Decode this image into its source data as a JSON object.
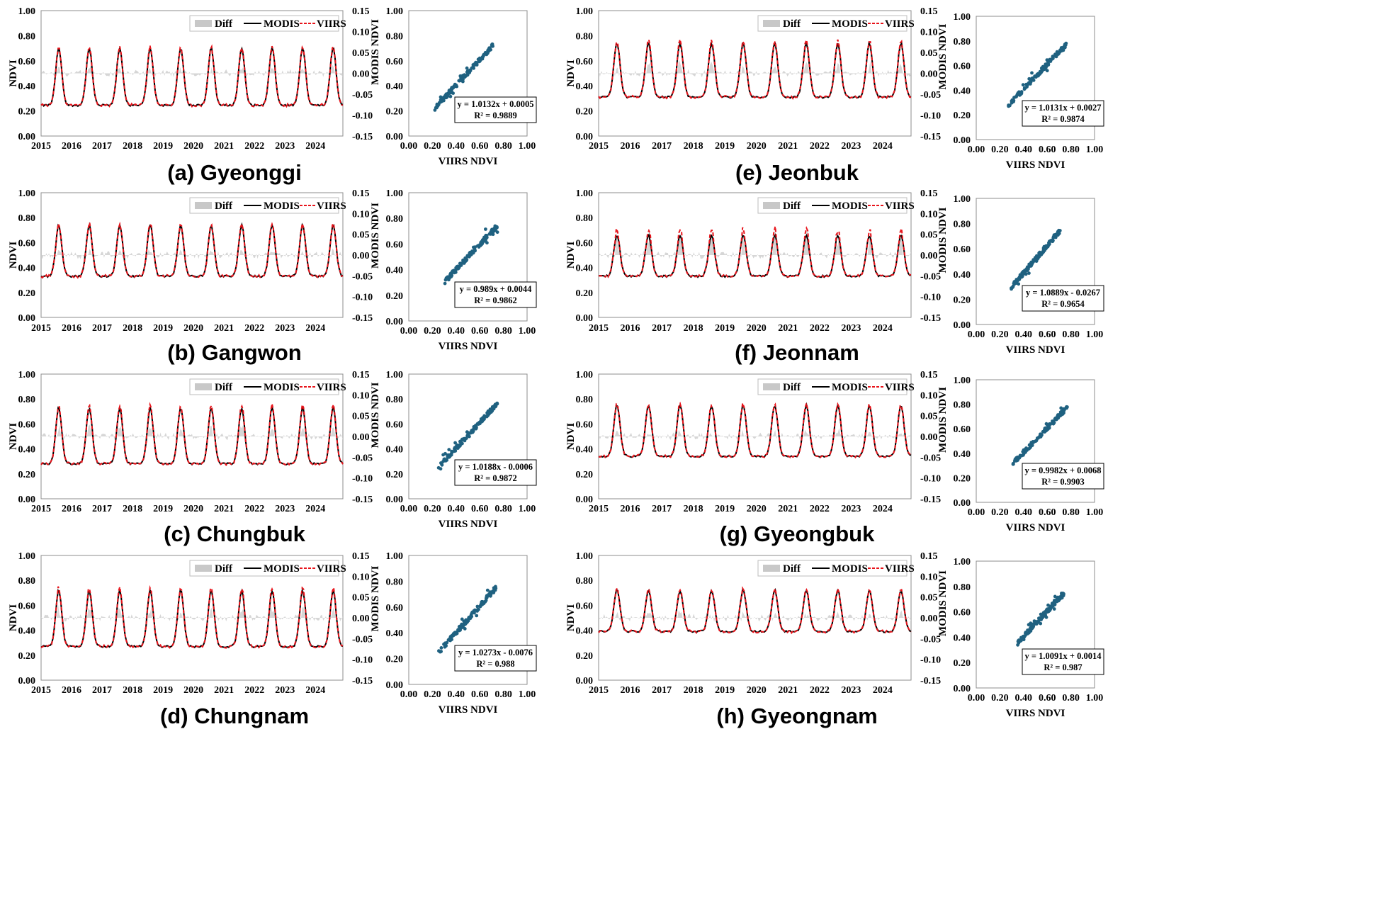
{
  "figure": {
    "legend": {
      "diff": "Diff",
      "modis": "MODIS",
      "viirs": "VIIRS"
    },
    "colors": {
      "modis": "#000000",
      "viirs": "#e8141b",
      "diff": "#c8c8c8",
      "scatter": "#1f6180",
      "frame": "#8c8c8c"
    },
    "ts_ylabel": "NDVI",
    "scatter_xlabel": "VIIRS NDVI",
    "scatter_ylabel": "MODIS NDVI",
    "ndvi_ticks": [
      "0.00",
      "0.20",
      "0.40",
      "0.60",
      "0.80",
      "1.00"
    ],
    "diff_ticks": [
      "0.15",
      "0.10",
      "0.05",
      "0.00",
      "-0.05",
      "-0.10",
      "-0.15"
    ],
    "year_ticks": [
      "2015",
      "2016",
      "2017",
      "2018",
      "2019",
      "2020",
      "2021",
      "2022",
      "2023",
      "2024"
    ],
    "scatter_x_ticks": [
      "0.00",
      "0.20",
      "0.40",
      "0.60",
      "0.80",
      "1.00"
    ]
  },
  "chart_data": [
    {
      "type": "line",
      "region": "Gyeonggi",
      "caption": "(a) Gyeonggi",
      "x_range": [
        2015,
        2024.9
      ],
      "ylim": [
        0,
        1
      ],
      "y2lim": [
        -0.15,
        0.15
      ],
      "modis_min": 0.245,
      "modis_max": 0.7,
      "viirs_peak_bias": 0.01,
      "scatter": {
        "x_range": [
          0.22,
          0.72
        ],
        "slope": 1.0132,
        "intercept": 0.0005,
        "equation": "y = 1.0132x + 0.0005",
        "r2": "R² = 0.9889"
      }
    },
    {
      "type": "line",
      "region": "Gangwon",
      "caption": "(b) Gangwon",
      "x_range": [
        2015,
        2024.9
      ],
      "ylim": [
        0,
        1
      ],
      "y2lim": [
        -0.15,
        0.15
      ],
      "modis_min": 0.33,
      "modis_max": 0.74,
      "viirs_peak_bias": 0.01,
      "scatter": {
        "x_range": [
          0.3,
          0.75
        ],
        "slope": 0.989,
        "intercept": 0.0044,
        "equation": "y = 0.989x + 0.0044",
        "r2": "R² = 0.9862"
      }
    },
    {
      "type": "line",
      "region": "Chungbuk",
      "caption": "(c) Chungbuk",
      "x_range": [
        2015,
        2024.9
      ],
      "ylim": [
        0,
        1
      ],
      "y2lim": [
        -0.15,
        0.15
      ],
      "modis_min": 0.28,
      "modis_max": 0.73,
      "viirs_peak_bias": 0.02,
      "scatter": {
        "x_range": [
          0.25,
          0.75
        ],
        "slope": 1.0188,
        "intercept": -0.0006,
        "equation": "y = 1.0188x - 0.0006",
        "r2": "R² = 0.9872"
      }
    },
    {
      "type": "line",
      "region": "Chungnam",
      "caption": "(d) Chungnam",
      "x_range": [
        2015,
        2024.9
      ],
      "ylim": [
        0,
        1
      ],
      "y2lim": [
        -0.15,
        0.15
      ],
      "modis_min": 0.27,
      "modis_max": 0.72,
      "viirs_peak_bias": 0.02,
      "scatter": {
        "x_range": [
          0.25,
          0.74
        ],
        "slope": 1.0273,
        "intercept": -0.0076,
        "equation": "y = 1.0273x - 0.0076",
        "r2": "R² = 0.988"
      }
    },
    {
      "type": "line",
      "region": "Jeonbuk",
      "caption": "(e) Jeonbuk",
      "x_range": [
        2015,
        2024.9
      ],
      "ylim": [
        0,
        1
      ],
      "y2lim": [
        -0.15,
        0.15
      ],
      "modis_min": 0.31,
      "modis_max": 0.74,
      "viirs_peak_bias": 0.02,
      "scatter": {
        "x_range": [
          0.27,
          0.76
        ],
        "slope": 1.0131,
        "intercept": 0.0027,
        "equation": "y = 1.0131x + 0.0027",
        "r2": "R² = 0.9874"
      }
    },
    {
      "type": "line",
      "region": "Jeonnam",
      "caption": "(f) Jeonnam",
      "x_range": [
        2015,
        2024.9
      ],
      "ylim": [
        0,
        1
      ],
      "y2lim": [
        -0.15,
        0.15
      ],
      "modis_min": 0.33,
      "modis_max": 0.66,
      "viirs_peak_bias": 0.05,
      "scatter": {
        "x_range": [
          0.29,
          0.71
        ],
        "slope": 1.0889,
        "intercept": -0.0267,
        "equation": "y = 1.0889x - 0.0267",
        "r2": "R² = 0.9654"
      }
    },
    {
      "type": "line",
      "region": "Gyeongbuk",
      "caption": "(g) Gyeongbuk",
      "x_range": [
        2015,
        2024.9
      ],
      "ylim": [
        0,
        1
      ],
      "y2lim": [
        -0.15,
        0.15
      ],
      "modis_min": 0.34,
      "modis_max": 0.75,
      "viirs_peak_bias": 0.01,
      "scatter": {
        "x_range": [
          0.31,
          0.77
        ],
        "slope": 0.9982,
        "intercept": 0.0068,
        "equation": "y = 0.9982x + 0.0068",
        "r2": "R² = 0.9903"
      }
    },
    {
      "type": "line",
      "region": "Gyeongnam",
      "caption": "(h) Gyeongnam",
      "x_range": [
        2015,
        2024.9
      ],
      "ylim": [
        0,
        1
      ],
      "y2lim": [
        -0.15,
        0.15
      ],
      "modis_min": 0.39,
      "modis_max": 0.72,
      "viirs_peak_bias": 0.01,
      "scatter": {
        "x_range": [
          0.35,
          0.74
        ],
        "slope": 1.0091,
        "intercept": 0.0014,
        "equation": "y = 1.0091x + 0.0014",
        "r2": "R² = 0.987"
      }
    }
  ]
}
